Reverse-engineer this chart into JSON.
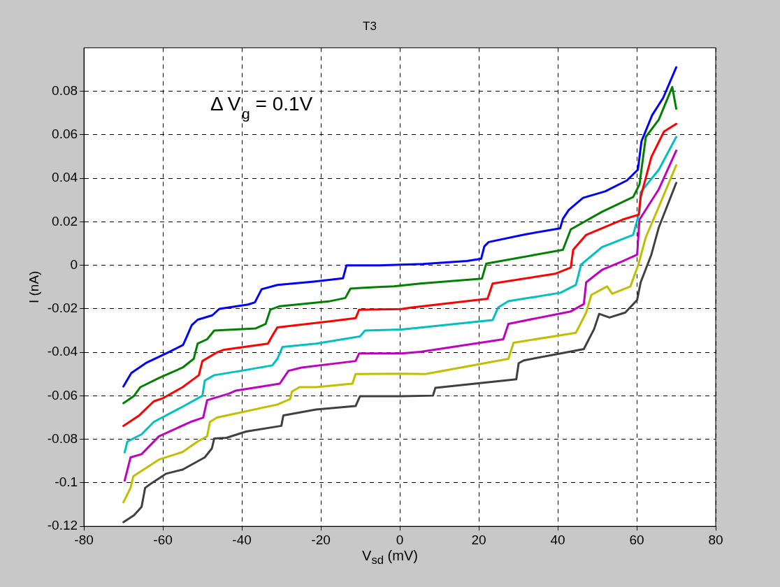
{
  "chart_data": {
    "type": "line",
    "title": "T3",
    "xlabel": "V$_{sd}$ (mV)",
    "ylabel": "I (nA)",
    "annotations": [
      "Δ V$_{g}$ = 0.1V"
    ],
    "xlim": [
      -80,
      80
    ],
    "xticks": [
      -80,
      -60,
      -40,
      -20,
      0,
      20,
      40,
      60,
      80
    ],
    "ylim": [
      -0.12,
      0.1
    ],
    "yticks": [
      -0.12,
      -0.1,
      -0.08,
      -0.06,
      -0.04,
      -0.02,
      0,
      0.02,
      0.04,
      0.06,
      0.08
    ],
    "grid": true,
    "legend": false,
    "marker": "none",
    "line_style": "solid",
    "series": [
      {
        "color": "#0000ff",
        "x": [
          -70,
          -68,
          -64.1,
          -58.6,
          -54.9,
          -54,
          -52.7,
          -51.2,
          -47.5,
          -45.7,
          -38.4,
          -36.7,
          -35,
          -31,
          -21.8,
          -14.4,
          -13.5,
          -5.2,
          5.9,
          17,
          20.6,
          21.4,
          22.5,
          31.7,
          40.6,
          41.3,
          42.8,
          46.4,
          52,
          57.5,
          60.3,
          61.2,
          63.9,
          66.7,
          70
        ],
        "values": [
          -0.0557,
          -0.0495,
          -0.0447,
          -0.04,
          -0.0366,
          -0.033,
          -0.0275,
          -0.025,
          -0.023,
          -0.02,
          -0.018,
          -0.017,
          -0.011,
          -0.009,
          -0.0075,
          -0.006,
          0,
          0,
          0.0006,
          0.002,
          0.003,
          0.0087,
          0.0107,
          0.0142,
          0.017,
          0.0214,
          0.0255,
          0.031,
          0.034,
          0.039,
          0.044,
          0.057,
          0.069,
          0.077,
          0.091
        ]
      },
      {
        "color": "#008000",
        "x": [
          -70,
          -67.3,
          -65.7,
          -61,
          -55,
          -52.2,
          -51.2,
          -48.8,
          -47,
          -36.5,
          -34,
          -32.8,
          -30.4,
          -18,
          -13.8,
          -12.5,
          -5.7,
          -1.5,
          5.2,
          20.8,
          21.9,
          41.3,
          43.3,
          51.2,
          59.1,
          60.7,
          62.3,
          65.6,
          69,
          70
        ],
        "values": [
          -0.0634,
          -0.06,
          -0.056,
          -0.0518,
          -0.047,
          -0.043,
          -0.036,
          -0.034,
          -0.03,
          -0.029,
          -0.027,
          -0.0204,
          -0.0188,
          -0.0166,
          -0.015,
          -0.0107,
          -0.01,
          -0.0097,
          -0.0084,
          -0.0061,
          0.0008,
          0.0071,
          0.0165,
          0.0246,
          0.0314,
          0.0372,
          0.059,
          0.067,
          0.082,
          0.072
        ]
      },
      {
        "color": "#ff0000",
        "x": [
          -70,
          -66,
          -62.3,
          -59.9,
          -55,
          -50.9,
          -50,
          -46.3,
          -44.5,
          -33.4,
          -32.3,
          -31,
          -18,
          -11.2,
          -10.3,
          0.4,
          3.1,
          22.2,
          23.5,
          39.3,
          43.3,
          43.9,
          47.2,
          56.4,
          60.5,
          61,
          63.7,
          66.9,
          70
        ],
        "values": [
          -0.0738,
          -0.069,
          -0.0625,
          -0.061,
          -0.056,
          -0.0505,
          -0.044,
          -0.04,
          -0.0388,
          -0.036,
          -0.0324,
          -0.0285,
          -0.0258,
          -0.0243,
          -0.0204,
          -0.0201,
          -0.0194,
          -0.0154,
          -0.0084,
          -0.0039,
          -0.001,
          0.0071,
          0.014,
          0.021,
          0.0233,
          0.0314,
          0.0498,
          0.0615,
          0.065
        ]
      },
      {
        "color": "#00bfbf",
        "x": [
          -69.7,
          -69,
          -65.4,
          -62.3,
          -55,
          -50,
          -49.4,
          -47,
          -40.2,
          -32.3,
          -31,
          -29.7,
          -21.2,
          -10.1,
          -8.8,
          0.4,
          4.4,
          23.5,
          24.9,
          27.5,
          40.7,
          44.6,
          45.9,
          51.2,
          59.1,
          60.7,
          61,
          65.6,
          70
        ],
        "values": [
          -0.086,
          -0.081,
          -0.0777,
          -0.072,
          -0.065,
          -0.06,
          -0.053,
          -0.0505,
          -0.0485,
          -0.046,
          -0.043,
          -0.0375,
          -0.036,
          -0.0327,
          -0.03,
          -0.0295,
          -0.0288,
          -0.0252,
          -0.0194,
          -0.0165,
          -0.0126,
          -0.009,
          0.0003,
          0.0084,
          0.014,
          0.0246,
          0.0336,
          0.044,
          0.059
        ]
      },
      {
        "color": "#bf00bf",
        "x": [
          -69.7,
          -68.2,
          -65.4,
          -61,
          -53,
          -49.8,
          -48.8,
          -43.3,
          -41.5,
          -30.4,
          -28.2,
          -24.9,
          -11.2,
          -10.3,
          0.4,
          5.2,
          26.2,
          27.5,
          43.3,
          46.6,
          47.2,
          51.2,
          56.4,
          60.1,
          60.7,
          65.6,
          70
        ],
        "values": [
          -0.099,
          -0.0883,
          -0.0868,
          -0.0786,
          -0.072,
          -0.07,
          -0.062,
          -0.059,
          -0.0576,
          -0.0544,
          -0.0485,
          -0.047,
          -0.044,
          -0.0405,
          -0.0405,
          -0.0398,
          -0.034,
          -0.0269,
          -0.0212,
          -0.0178,
          -0.0078,
          -0.0021,
          0.0019,
          0.0049,
          0.021,
          0.035,
          0.0527
        ]
      },
      {
        "color": "#bfbf00",
        "x": [
          -70,
          -68.2,
          -67.5,
          -61,
          -55,
          -51.2,
          -48.8,
          -48.1,
          -46.3,
          -31,
          -27.8,
          -27.3,
          -25.4,
          -21.2,
          -12,
          -11.2,
          0.4,
          6.5,
          27.5,
          28.8,
          44.6,
          47.2,
          48.5,
          52.5,
          53.8,
          58.4,
          60.4,
          62.3,
          65.6,
          70
        ],
        "values": [
          -0.109,
          -0.1023,
          -0.097,
          -0.0893,
          -0.0858,
          -0.081,
          -0.0786,
          -0.072,
          -0.07,
          -0.064,
          -0.0615,
          -0.058,
          -0.056,
          -0.056,
          -0.0544,
          -0.05,
          -0.0498,
          -0.05,
          -0.043,
          -0.0356,
          -0.031,
          -0.0217,
          -0.0136,
          -0.0097,
          -0.0131,
          -0.0097,
          0.0003,
          0.0129,
          0.0269,
          0.046
        ]
      },
      {
        "color": "#404040",
        "x": [
          -70,
          -67.3,
          -65.4,
          -64.5,
          -63.2,
          -60.5,
          -59.2,
          -55,
          -49.4,
          -47.6,
          -47,
          -43.9,
          -38.9,
          -30,
          -29.5,
          -21.2,
          -11.2,
          -10.1,
          0.4,
          8.4,
          9,
          29.5,
          30.1,
          31.4,
          46.6,
          49.2,
          50.5,
          53.1,
          57.1,
          60.1,
          61,
          63.7,
          65.6,
          70
        ],
        "values": [
          -0.1181,
          -0.1149,
          -0.111,
          -0.1023,
          -0.1006,
          -0.0974,
          -0.0958,
          -0.0939,
          -0.0883,
          -0.0842,
          -0.0796,
          -0.0793,
          -0.0764,
          -0.0738,
          -0.069,
          -0.0663,
          -0.0647,
          -0.0602,
          -0.0602,
          -0.0599,
          -0.0563,
          -0.0524,
          -0.045,
          -0.0437,
          -0.0385,
          -0.0293,
          -0.0223,
          -0.024,
          -0.0217,
          -0.0159,
          -0.0078,
          0.0049,
          0.0175,
          0.0379
        ]
      }
    ]
  }
}
